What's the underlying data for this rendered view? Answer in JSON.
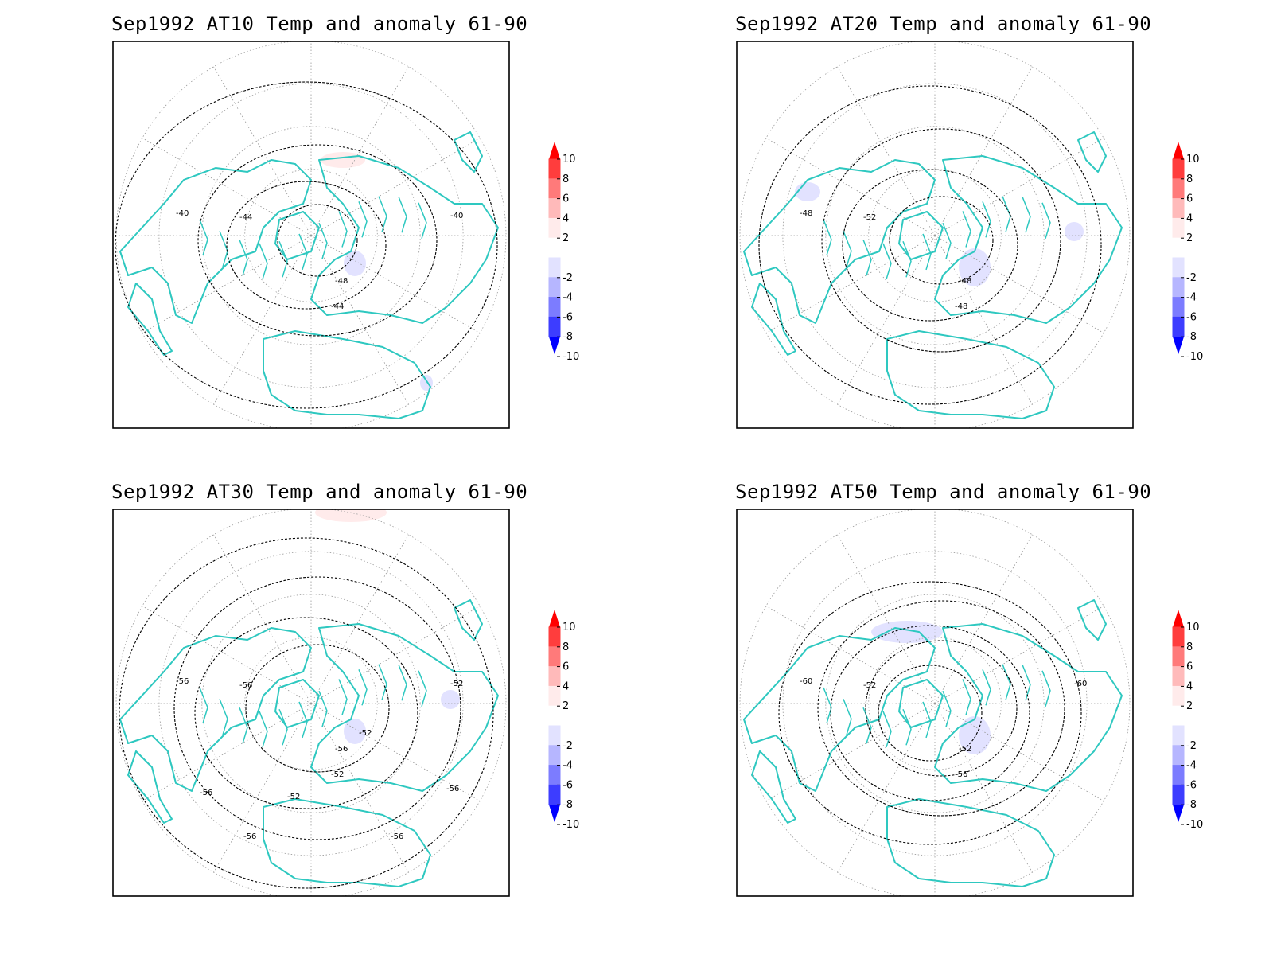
{
  "panels": [
    {
      "title": "Sep1992 AT10 Temp and anomaly 61-90",
      "contour_labels": [
        "-40",
        "-44",
        "-48",
        "-44",
        "-40"
      ],
      "anomaly_blobs": [
        {
          "sign": "positive",
          "level": 2,
          "region": "arctic-siberia"
        },
        {
          "sign": "negative",
          "level": 2,
          "region": "central-asia"
        },
        {
          "sign": "negative",
          "level": 2,
          "region": "east-asia"
        }
      ]
    },
    {
      "title": "Sep1992 AT20 Temp and anomaly 61-90",
      "contour_labels": [
        "-48",
        "-52",
        "-48",
        "-48"
      ],
      "anomaly_blobs": [
        {
          "sign": "negative",
          "level": 2,
          "region": "bering"
        },
        {
          "sign": "negative",
          "level": 2,
          "region": "north-atlantic"
        },
        {
          "sign": "negative",
          "level": 2,
          "region": "north-pacific"
        }
      ]
    },
    {
      "title": "Sep1992 AT30 Temp and anomaly 61-90",
      "contour_labels": [
        "-56",
        "-56",
        "-56",
        "-52",
        "-52",
        "-52",
        "-52",
        "-56",
        "-56",
        "-56",
        "-56"
      ],
      "anomaly_blobs": [
        {
          "sign": "positive",
          "level": 2,
          "region": "equatorial"
        },
        {
          "sign": "negative",
          "level": 2,
          "region": "central-asia"
        },
        {
          "sign": "negative",
          "level": 2,
          "region": "north-pacific"
        }
      ]
    },
    {
      "title": "Sep1992 AT50 Temp and anomaly 61-90",
      "contour_labels": [
        "-60",
        "-52",
        "-52",
        "-56",
        "-60"
      ],
      "anomaly_blobs": [
        {
          "sign": "negative",
          "level": 2,
          "region": "siberia"
        },
        {
          "sign": "negative",
          "level": 2,
          "region": "north-atlantic"
        }
      ]
    }
  ],
  "legend": {
    "ticks": [
      "10",
      "8",
      "6",
      "4",
      "2",
      "-2",
      "-4",
      "-6",
      "-8",
      "-10"
    ],
    "colors": [
      "#ff0000",
      "#ff3d3d",
      "#ff7a7a",
      "#ffbaba",
      "#ffebeb",
      "#ffffff",
      "#e2e2ff",
      "#b6b6ff",
      "#7c7cff",
      "#3d3dff",
      "#0000ff"
    ]
  },
  "colors": {
    "coast": "#2ec8c0",
    "contour": "#000000",
    "grid": "#9a9a9a",
    "frame": "#000000"
  }
}
